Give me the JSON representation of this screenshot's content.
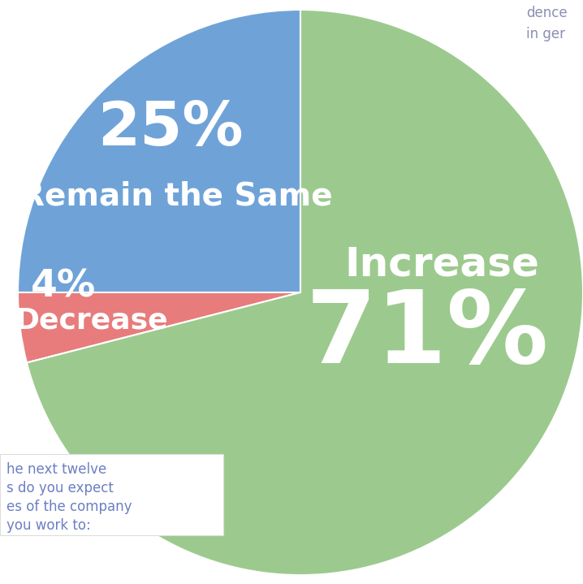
{
  "chart_data": {
    "type": "pie",
    "categories": [
      "Remain the Same",
      "Decrease",
      "Increase"
    ],
    "values": [
      25,
      4,
      71
    ],
    "value_labels": [
      "25%",
      "4%",
      "71%"
    ],
    "colors": [
      "#6fa3d8",
      "#e87c7c",
      "#9cca8e"
    ],
    "data_labels": true,
    "annotations": [
      "he next twelve\ns do you expect\nes of the company\nyou work to:",
      "dence\nin ger"
    ]
  }
}
